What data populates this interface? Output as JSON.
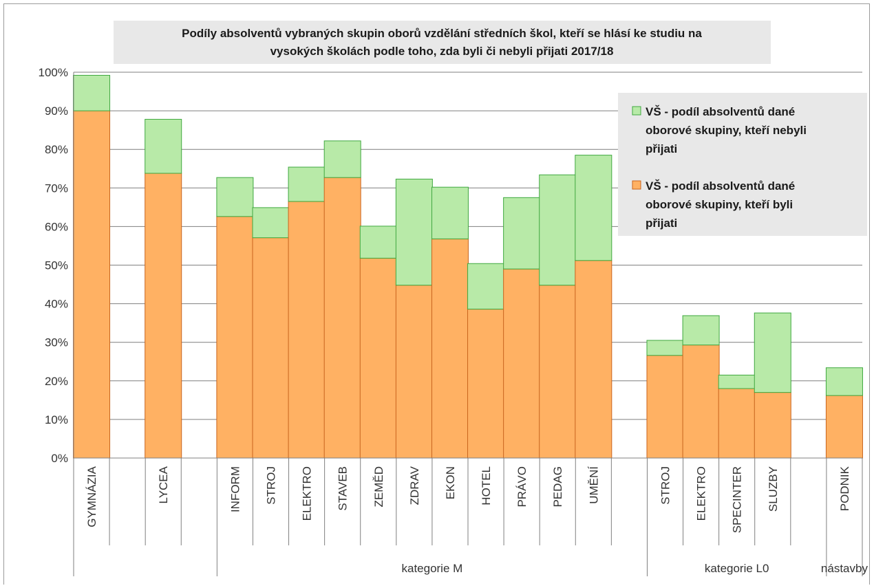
{
  "chart_data": {
    "type": "bar",
    "stacked": true,
    "title_line1": "Podíly absolventů vybraných skupin oborů vzdělání středních škol, kteří se hlásí ke studiu na",
    "title_line2": "vysokých školách podle toho, zda byli či nebyli přijati 2017/18",
    "ylim": [
      0,
      100
    ],
    "yticks": [
      "0%",
      "10%",
      "20%",
      "30%",
      "40%",
      "50%",
      "60%",
      "70%",
      "80%",
      "90%",
      "100%"
    ],
    "grid": true,
    "legend_position": "top-right",
    "categories": [
      "GYMNÁZIA",
      "",
      "LYCEA",
      "",
      "INFORM",
      "STROJ",
      "ELEKTRO",
      "STAVEB",
      "ZEMĚD",
      "ZDRAV",
      "EKON",
      "HOTEL",
      "PRÁVO",
      "PEDAG",
      "UMĚNÍ",
      "",
      "STROJ",
      "ELEKTRO",
      "SPECINTER",
      "SLUZBY",
      "",
      "PODNIK"
    ],
    "groups": [
      {
        "label": "",
        "start": 0,
        "end": 1
      },
      {
        "label": "",
        "start": 2,
        "end": 3
      },
      {
        "label": "kategorie M",
        "start": 4,
        "end": 15
      },
      {
        "label": "kategorie L0",
        "start": 16,
        "end": 20
      },
      {
        "label": "nástavby",
        "start": 21,
        "end": 21
      }
    ],
    "series": [
      {
        "name": "VŠ - podíl absolventů dané oborové skupiny, kteří byli přijati",
        "color": "#FFB163",
        "stroke": "#C8641E",
        "values": [
          90.0,
          null,
          73.8,
          null,
          62.6,
          57.1,
          66.5,
          72.7,
          51.8,
          44.8,
          56.8,
          38.6,
          49.0,
          44.8,
          51.2,
          null,
          26.6,
          29.3,
          18.0,
          17.0,
          null,
          16.2
        ]
      },
      {
        "name": "VŠ - podíl absolventů dané oborové skupiny, kteří nebyli přijati",
        "color": "#B8EAA8",
        "stroke": "#3FA83F",
        "values": [
          9.2,
          null,
          14.0,
          null,
          10.1,
          7.8,
          8.9,
          9.5,
          8.3,
          27.5,
          13.4,
          11.8,
          18.5,
          28.6,
          27.3,
          null,
          3.9,
          7.6,
          3.5,
          20.6,
          null,
          7.2
        ]
      }
    ],
    "legend": [
      {
        "lines": [
          "VŠ - podíl absolventů dané",
          "oborové skupiny, kteří nebyli",
          "přijati"
        ],
        "color": "#B8EAA8",
        "stroke": "#3FA83F"
      },
      {
        "lines": [
          "VŠ - podíl absolventů dané",
          "oborové skupiny, kteří byli",
          "přijati"
        ],
        "color": "#FFB163",
        "stroke": "#C8641E"
      }
    ]
  }
}
